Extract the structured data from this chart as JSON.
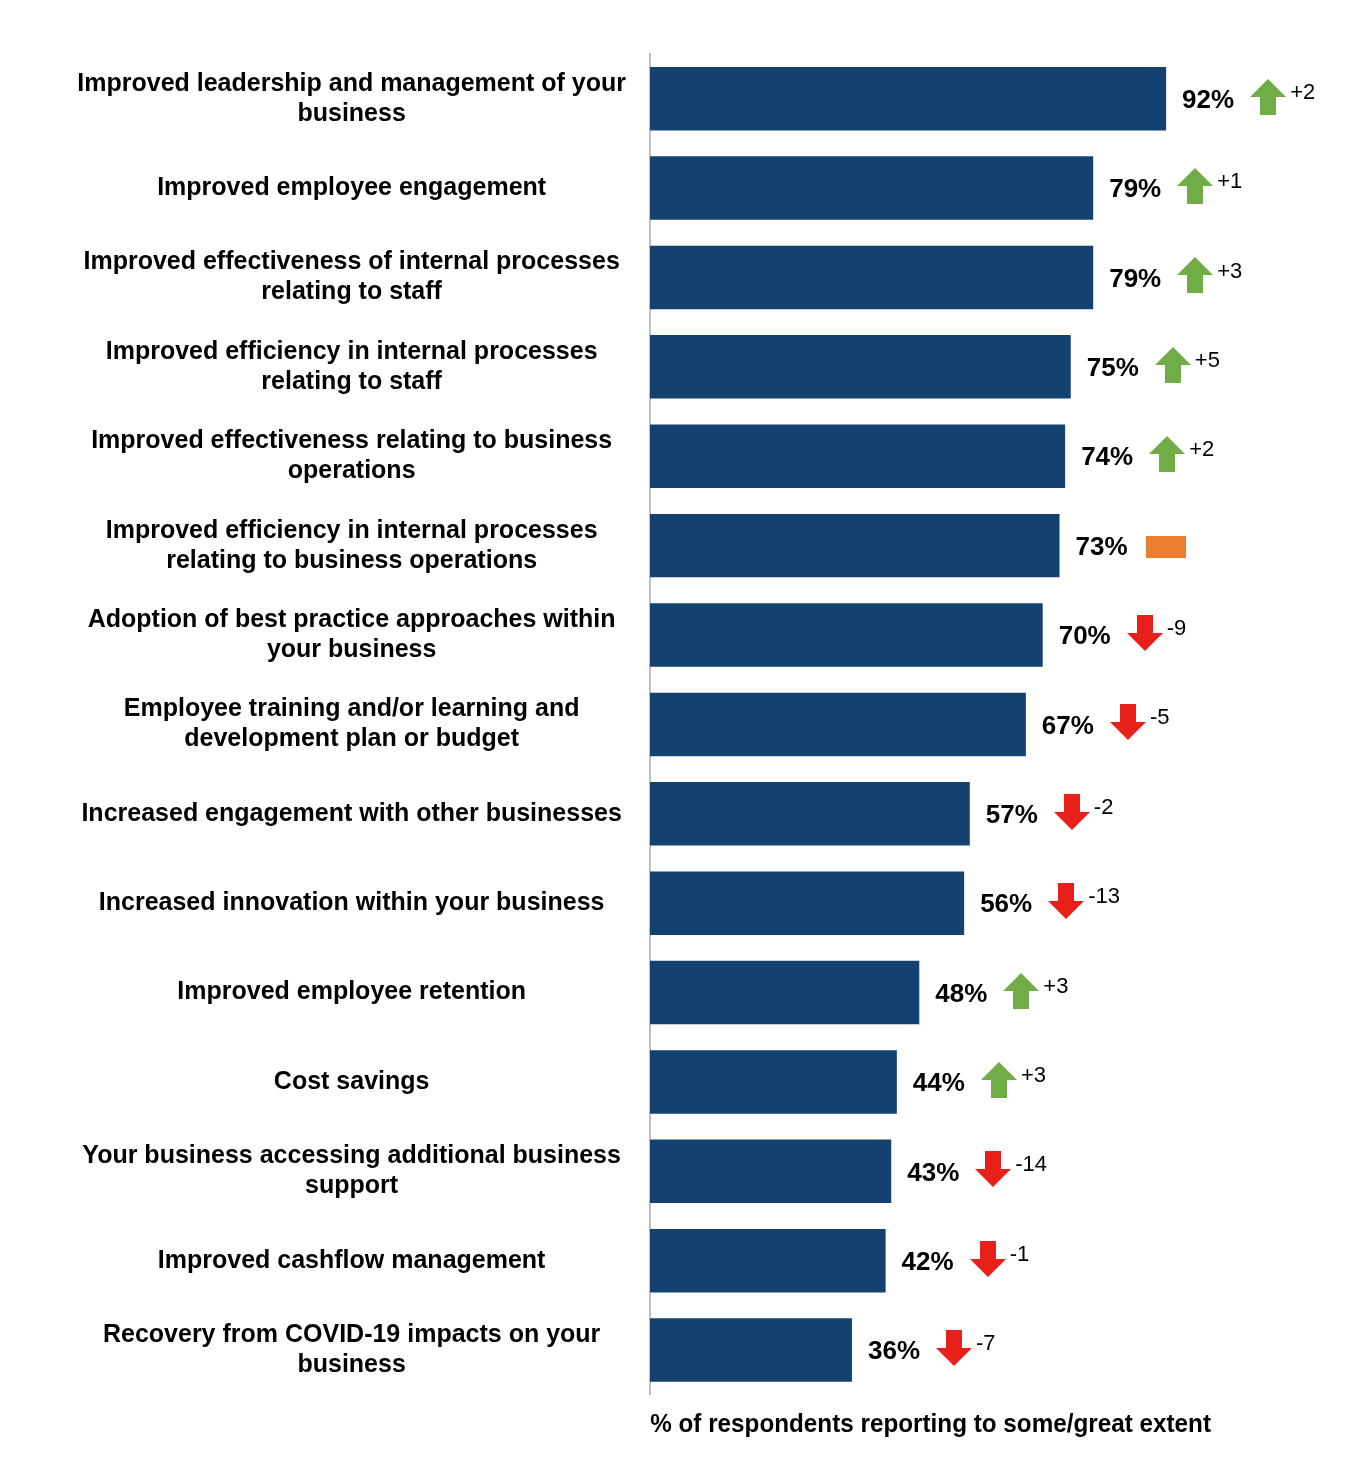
{
  "chart_data": {
    "type": "bar",
    "orientation": "horizontal",
    "xlabel": "% of respondents reporting to some/great extent",
    "categories": [
      "Improved leadership and management of your business",
      "Improved employee engagement",
      "Improved effectiveness of internal processes relating to staff",
      "Improved efficiency in internal processes relating to staff",
      "Improved effectiveness relating to business operations",
      "Improved efficiency in internal processes relating to business operations",
      "Adoption of best practice approaches within your business",
      "Employee training and/or learning and development plan or budget",
      "Increased engagement with other businesses",
      "Increased innovation within your business",
      "Improved employee retention",
      "Cost savings",
      "Your business accessing additional business support",
      "Improved cashflow management",
      "Recovery from COVID-19 impacts on your business"
    ],
    "values": [
      92,
      79,
      79,
      75,
      74,
      73,
      70,
      67,
      57,
      56,
      48,
      44,
      43,
      42,
      36
    ],
    "value_labels": [
      "92%",
      "79%",
      "79%",
      "75%",
      "74%",
      "73%",
      "70%",
      "67%",
      "57%",
      "56%",
      "48%",
      "44%",
      "43%",
      "42%",
      "36%"
    ],
    "color": "#144270",
    "tick_labels": "y",
    "grid": false,
    "legend": false,
    "annotations": [
      "+2",
      "+1",
      "+3",
      "+5",
      "+2",
      null,
      "-9",
      "-5",
      "-2",
      "-13",
      "+3",
      "+3",
      "-14",
      "-1",
      "-7"
    ]
  }
}
